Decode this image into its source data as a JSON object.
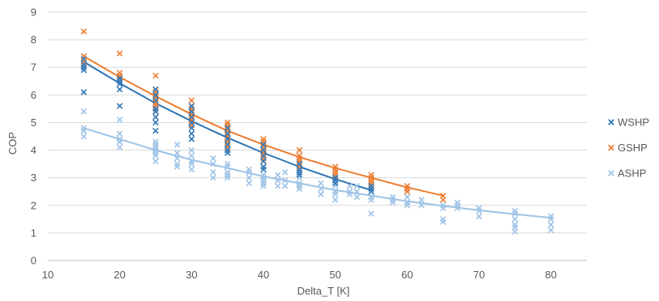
{
  "chart_data": {
    "type": "scatter",
    "title": "",
    "xlabel": "Delta_T [K]",
    "ylabel": "COP",
    "xlim": [
      10,
      85
    ],
    "ylim": [
      0,
      9
    ],
    "x_ticks": [
      "10",
      "20",
      "30",
      "40",
      "50",
      "60",
      "70",
      "80"
    ],
    "y_ticks": [
      "0",
      "1",
      "2",
      "3",
      "4",
      "5",
      "6",
      "7",
      "8",
      "9"
    ],
    "grid": "horizontal",
    "legend_position": "right",
    "marker": "x",
    "series": [
      {
        "name": "ASHP",
        "color": "#9DC3E6",
        "points": [
          [
            15,
            5.4
          ],
          [
            15,
            4.8
          ],
          [
            15,
            4.7
          ],
          [
            15,
            4.5
          ],
          [
            20,
            5.1
          ],
          [
            20,
            4.6
          ],
          [
            20,
            4.4
          ],
          [
            20,
            4.3
          ],
          [
            20,
            4.1
          ],
          [
            25,
            4.3
          ],
          [
            25,
            4.2
          ],
          [
            25,
            4.1
          ],
          [
            25,
            4.0
          ],
          [
            25,
            3.9
          ],
          [
            25,
            3.8
          ],
          [
            25,
            3.6
          ],
          [
            28,
            4.2
          ],
          [
            28,
            3.9
          ],
          [
            28,
            3.7
          ],
          [
            28,
            3.5
          ],
          [
            28,
            3.4
          ],
          [
            30,
            4.0
          ],
          [
            30,
            3.8
          ],
          [
            30,
            3.6
          ],
          [
            30,
            3.5
          ],
          [
            30,
            3.3
          ],
          [
            33,
            3.7
          ],
          [
            33,
            3.5
          ],
          [
            33,
            3.2
          ],
          [
            33,
            3.0
          ],
          [
            35,
            3.5
          ],
          [
            35,
            3.4
          ],
          [
            35,
            3.2
          ],
          [
            35,
            3.1
          ],
          [
            35,
            3.0
          ],
          [
            38,
            3.3
          ],
          [
            38,
            3.2
          ],
          [
            38,
            3.0
          ],
          [
            38,
            2.8
          ],
          [
            40,
            3.1
          ],
          [
            40,
            3.0
          ],
          [
            40,
            2.9
          ],
          [
            40,
            2.8
          ],
          [
            40,
            2.7
          ],
          [
            42,
            3.1
          ],
          [
            42,
            2.9
          ],
          [
            42,
            2.7
          ],
          [
            43,
            3.2
          ],
          [
            43,
            2.9
          ],
          [
            43,
            2.7
          ],
          [
            45,
            3.0
          ],
          [
            45,
            2.8
          ],
          [
            45,
            2.7
          ],
          [
            45,
            2.6
          ],
          [
            48,
            2.8
          ],
          [
            48,
            2.6
          ],
          [
            48,
            2.4
          ],
          [
            50,
            2.7
          ],
          [
            50,
            2.5
          ],
          [
            50,
            2.4
          ],
          [
            50,
            2.2
          ],
          [
            52,
            2.7
          ],
          [
            52,
            2.5
          ],
          [
            52,
            2.4
          ],
          [
            53,
            2.7
          ],
          [
            53,
            2.5
          ],
          [
            53,
            2.3
          ],
          [
            55,
            2.5
          ],
          [
            55,
            2.3
          ],
          [
            55,
            2.2
          ],
          [
            55,
            1.7
          ],
          [
            58,
            2.3
          ],
          [
            58,
            2.2
          ],
          [
            58,
            2.1
          ],
          [
            60,
            2.3
          ],
          [
            60,
            2.1
          ],
          [
            60,
            2.0
          ],
          [
            62,
            2.2
          ],
          [
            62,
            2.0
          ],
          [
            65,
            2.0
          ],
          [
            65,
            1.9
          ],
          [
            65,
            1.5
          ],
          [
            65,
            1.4
          ],
          [
            67,
            2.1
          ],
          [
            67,
            2.0
          ],
          [
            67,
            1.9
          ],
          [
            70,
            1.9
          ],
          [
            70,
            1.8
          ],
          [
            70,
            1.6
          ],
          [
            75,
            1.8
          ],
          [
            75,
            1.7
          ],
          [
            75,
            1.5
          ],
          [
            75,
            1.3
          ],
          [
            75,
            1.2
          ],
          [
            75,
            1.05
          ],
          [
            80,
            1.6
          ],
          [
            80,
            1.5
          ],
          [
            80,
            1.3
          ],
          [
            80,
            1.1
          ]
        ],
        "trend": [
          [
            15,
            4.8
          ],
          [
            20,
            4.4
          ],
          [
            25,
            4.0
          ],
          [
            30,
            3.65
          ],
          [
            35,
            3.35
          ],
          [
            40,
            3.05
          ],
          [
            45,
            2.8
          ],
          [
            50,
            2.55
          ],
          [
            55,
            2.35
          ],
          [
            60,
            2.15
          ],
          [
            65,
            1.98
          ],
          [
            70,
            1.82
          ],
          [
            75,
            1.68
          ],
          [
            80,
            1.55
          ]
        ]
      },
      {
        "name": "GSHP",
        "color": "#ED7D31",
        "points": [
          [
            15,
            8.3
          ],
          [
            15,
            7.4
          ],
          [
            15,
            7.2
          ],
          [
            20,
            7.5
          ],
          [
            20,
            6.8
          ],
          [
            20,
            6.7
          ],
          [
            20,
            6.6
          ],
          [
            20,
            6.5
          ],
          [
            25,
            6.7
          ],
          [
            25,
            6.2
          ],
          [
            25,
            6.1
          ],
          [
            25,
            6.0
          ],
          [
            25,
            5.9
          ],
          [
            25,
            5.8
          ],
          [
            25,
            5.7
          ],
          [
            25,
            5.6
          ],
          [
            25,
            5.5
          ],
          [
            25,
            5.4
          ],
          [
            30,
            5.8
          ],
          [
            30,
            5.6
          ],
          [
            30,
            5.5
          ],
          [
            30,
            5.4
          ],
          [
            30,
            5.3
          ],
          [
            30,
            5.2
          ],
          [
            30,
            5.1
          ],
          [
            30,
            5.0
          ],
          [
            30,
            4.9
          ],
          [
            35,
            5.0
          ],
          [
            35,
            4.9
          ],
          [
            35,
            4.8
          ],
          [
            35,
            4.7
          ],
          [
            35,
            4.6
          ],
          [
            35,
            4.5
          ],
          [
            35,
            4.4
          ],
          [
            35,
            4.3
          ],
          [
            35,
            4.2
          ],
          [
            35,
            4.1
          ],
          [
            40,
            4.4
          ],
          [
            40,
            4.3
          ],
          [
            40,
            4.2
          ],
          [
            40,
            4.1
          ],
          [
            40,
            4.0
          ],
          [
            40,
            3.9
          ],
          [
            40,
            3.8
          ],
          [
            40,
            3.7
          ],
          [
            40,
            3.6
          ],
          [
            45,
            4.0
          ],
          [
            45,
            3.8
          ],
          [
            45,
            3.7
          ],
          [
            45,
            3.6
          ],
          [
            45,
            3.5
          ],
          [
            45,
            3.4
          ],
          [
            50,
            3.4
          ],
          [
            50,
            3.3
          ],
          [
            50,
            3.2
          ],
          [
            50,
            3.1
          ],
          [
            50,
            3.0
          ],
          [
            55,
            3.1
          ],
          [
            55,
            3.0
          ],
          [
            55,
            2.9
          ],
          [
            55,
            2.8
          ],
          [
            55,
            2.7
          ],
          [
            60,
            2.7
          ],
          [
            60,
            2.6
          ],
          [
            60,
            2.5
          ],
          [
            65,
            2.35
          ],
          [
            65,
            2.2
          ]
        ],
        "trend": [
          [
            15,
            7.4
          ],
          [
            20,
            6.65
          ],
          [
            25,
            5.95
          ],
          [
            30,
            5.3
          ],
          [
            35,
            4.7
          ],
          [
            40,
            4.2
          ],
          [
            45,
            3.75
          ],
          [
            50,
            3.35
          ],
          [
            55,
            3.0
          ],
          [
            60,
            2.65
          ],
          [
            65,
            2.35
          ]
        ]
      },
      {
        "name": "WSHP",
        "color": "#2E75B6",
        "points": [
          [
            15,
            7.3
          ],
          [
            15,
            7.1
          ],
          [
            15,
            7.0
          ],
          [
            15,
            6.9
          ],
          [
            15,
            6.1
          ],
          [
            20,
            6.6
          ],
          [
            20,
            6.5
          ],
          [
            20,
            6.4
          ],
          [
            20,
            6.2
          ],
          [
            20,
            5.6
          ],
          [
            25,
            6.2
          ],
          [
            25,
            6.0
          ],
          [
            25,
            5.8
          ],
          [
            25,
            5.5
          ],
          [
            25,
            5.4
          ],
          [
            25,
            5.2
          ],
          [
            25,
            5.0
          ],
          [
            25,
            4.7
          ],
          [
            30,
            5.6
          ],
          [
            30,
            5.4
          ],
          [
            30,
            5.2
          ],
          [
            30,
            5.0
          ],
          [
            30,
            4.8
          ],
          [
            30,
            4.6
          ],
          [
            30,
            4.4
          ],
          [
            35,
            4.8
          ],
          [
            35,
            4.6
          ],
          [
            35,
            4.4
          ],
          [
            35,
            4.2
          ],
          [
            35,
            4.0
          ],
          [
            35,
            3.9
          ],
          [
            40,
            4.2
          ],
          [
            40,
            4.0
          ],
          [
            40,
            3.8
          ],
          [
            40,
            3.6
          ],
          [
            40,
            3.4
          ],
          [
            40,
            3.3
          ],
          [
            45,
            3.5
          ],
          [
            45,
            3.3
          ],
          [
            45,
            3.2
          ],
          [
            45,
            3.1
          ],
          [
            50,
            3.0
          ],
          [
            50,
            2.9
          ],
          [
            50,
            2.8
          ],
          [
            55,
            2.7
          ],
          [
            55,
            2.6
          ],
          [
            55,
            2.5
          ]
        ],
        "trend": [
          [
            15,
            7.2
          ],
          [
            20,
            6.42
          ],
          [
            25,
            5.7
          ],
          [
            30,
            5.05
          ],
          [
            35,
            4.45
          ],
          [
            40,
            3.9
          ],
          [
            45,
            3.4
          ],
          [
            50,
            2.95
          ],
          [
            55,
            2.55
          ]
        ]
      }
    ],
    "legend": [
      {
        "name": "WSHP",
        "color": "#2E75B6"
      },
      {
        "name": "GSHP",
        "color": "#ED7D31"
      },
      {
        "name": "ASHP",
        "color": "#9DC3E6"
      }
    ]
  }
}
